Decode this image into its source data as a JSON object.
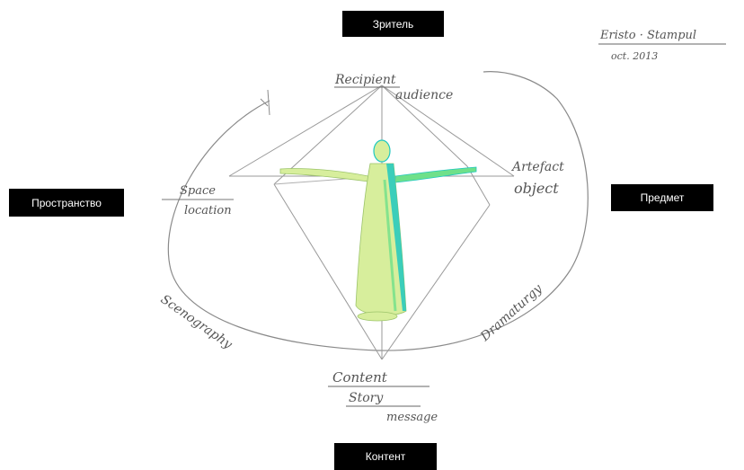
{
  "labels": {
    "top": "Зритель",
    "left": "Пространство",
    "right": "Предмет",
    "bottom": "Контент"
  },
  "handwriting": {
    "signature_line1": "Eristo · Stampul",
    "signature_line2": "oct. 2013",
    "top_line1": "Recipient",
    "top_line2": "audience",
    "left_line1": "Space",
    "left_line2": "location",
    "right_line1": "Artefact",
    "right_line2": "object",
    "bottom_line1": "Content",
    "bottom_line2": "Story",
    "bottom_line3": "message",
    "arc_left": "Scenography",
    "arc_right": "Dramaturgy"
  },
  "colors": {
    "box_fill": "#000000",
    "box_text": "#ffffff",
    "ink": "#555555",
    "figure_light": "#d7ee9c",
    "figure_mid": "#6fe08a",
    "figure_accent": "#20c8c0"
  }
}
